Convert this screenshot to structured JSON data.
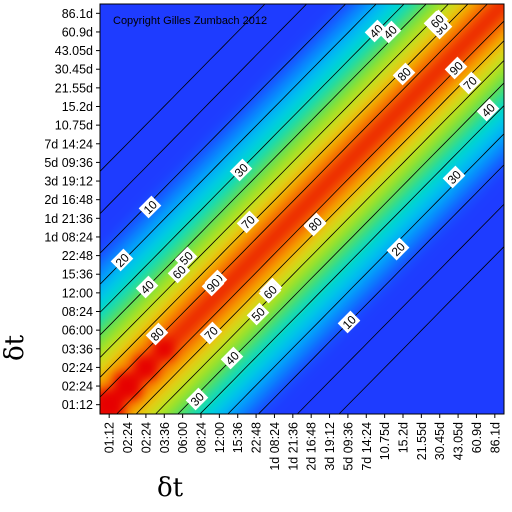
{
  "chart_data": {
    "type": "heatmap",
    "title": "",
    "copyright": "Copyright Gilles Zumbach 2012",
    "xlabel": "δt",
    "ylabel": "δt",
    "x_ticks": [
      "01:12",
      "02:24",
      "02:24",
      "03:36",
      "06:00",
      "08:24",
      "12:00",
      "15:36",
      "22:48",
      "1d 08:24",
      "1d 21:36",
      "2d 16:48",
      "3d 19:12",
      "5d 09:36",
      "7d 14:24",
      "10.75d",
      "15.2d",
      "21.55d",
      "30.45d",
      "43.05d",
      "60.9d",
      "86.1d"
    ],
    "y_ticks": [
      "01:12",
      "02:24",
      "02:24",
      "03:36",
      "06:00",
      "08:24",
      "12:00",
      "15:36",
      "22:48",
      "1d 08:24",
      "1d 21:36",
      "2d 16:48",
      "3d 19:12",
      "5d 09:36",
      "7d 14:24",
      "10.75d",
      "15.2d",
      "21.55d",
      "30.45d",
      "43.05d",
      "60.9d",
      "86.1d"
    ],
    "colorscale": [
      "#1e3cff",
      "#00a0ff",
      "#00dcdc",
      "#00dc00",
      "#a0e632",
      "#e6e600",
      "#ff9600",
      "#ff3c00",
      "#e60000"
    ],
    "contour_levels": [
      10,
      20,
      30,
      40,
      50,
      60,
      70,
      80,
      90
    ],
    "contour_labels": [
      {
        "text": "10"
      },
      {
        "text": "20"
      },
      {
        "text": "30"
      },
      {
        "text": "40"
      },
      {
        "text": "50"
      },
      {
        "text": "60"
      },
      {
        "text": "70"
      },
      {
        "text": "80"
      },
      {
        "text": "90"
      },
      {
        "text": "40"
      },
      {
        "text": "60"
      },
      {
        "text": "80"
      },
      {
        "text": "90"
      },
      {
        "text": "60"
      },
      {
        "text": "90"
      },
      {
        "text": "70"
      },
      {
        "text": "40"
      },
      {
        "text": "30"
      },
      {
        "text": "20"
      },
      {
        "text": "10"
      },
      {
        "text": "30"
      },
      {
        "text": "40"
      },
      {
        "text": "50"
      },
      {
        "text": "60"
      },
      {
        "text": "70"
      },
      {
        "text": "80"
      },
      {
        "text": "90"
      },
      {
        "text": "80"
      },
      {
        "text": "20"
      },
      {
        "text": "40"
      },
      {
        "text": "60"
      }
    ]
  }
}
